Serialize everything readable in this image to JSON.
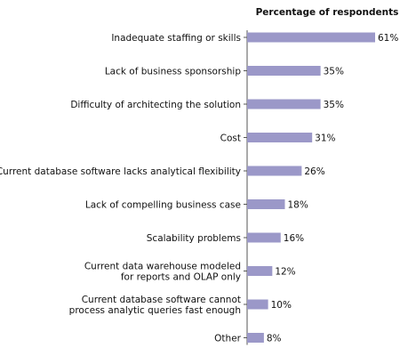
{
  "chart_data": {
    "type": "bar",
    "orientation": "horizontal",
    "header": "Percentage of respondents",
    "categories": [
      [
        "Inadequate staffing or skills"
      ],
      [
        "Lack of business sponsorship"
      ],
      [
        "Difficulty of architecting the solution"
      ],
      [
        "Cost"
      ],
      [
        "Current database software lacks analytical flexibility"
      ],
      [
        "Lack of compelling business case"
      ],
      [
        "Scalability problems"
      ],
      [
        "Current data warehouse modeled",
        "for reports and OLAP only"
      ],
      [
        "Current database software cannot",
        "process analytic queries fast enough"
      ],
      [
        "Other"
      ]
    ],
    "values": [
      61,
      35,
      35,
      31,
      26,
      18,
      16,
      12,
      10,
      8
    ],
    "value_labels": [
      "61%",
      "35%",
      "35%",
      "31%",
      "26%",
      "18%",
      "16%",
      "12%",
      "10%",
      "8%"
    ],
    "unit": "%",
    "xlim": [
      0,
      61
    ],
    "grid": false,
    "bar_color": "#9b98c8",
    "axis_color": "#555555"
  }
}
